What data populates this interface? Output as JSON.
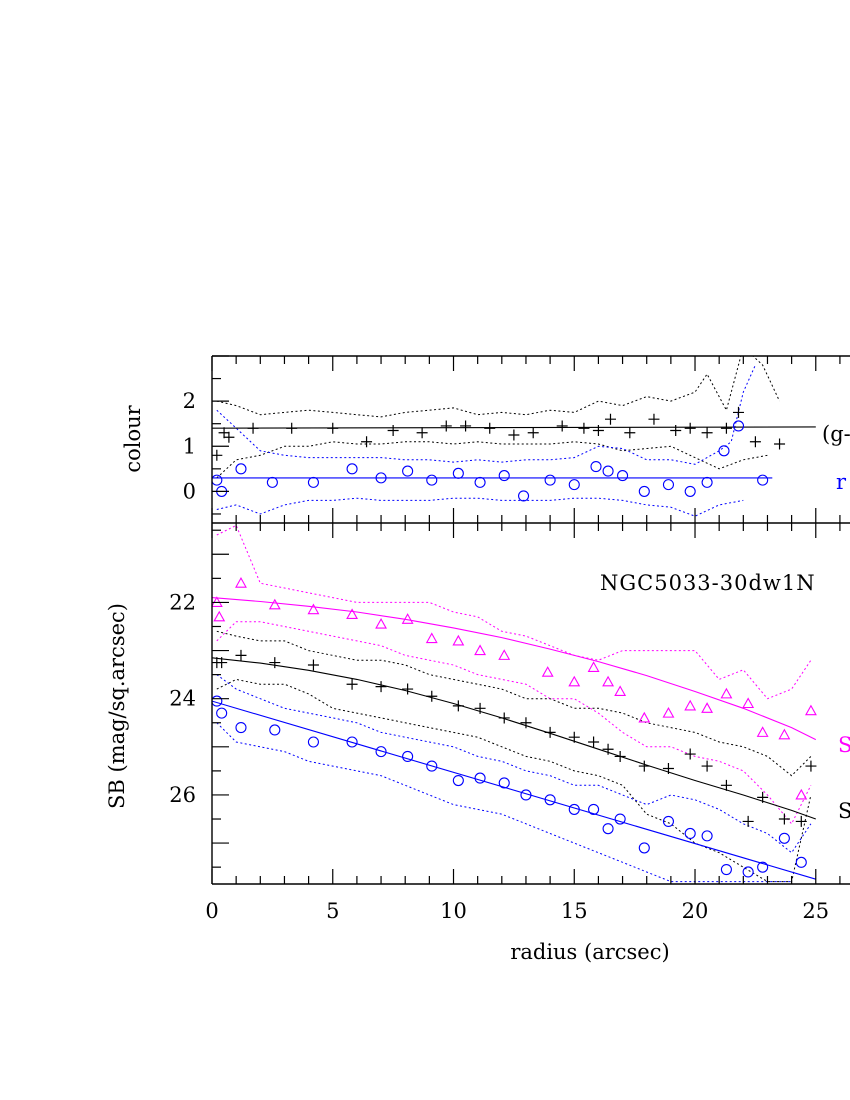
{
  "chart_data": [
    {
      "type": "scatter",
      "panel": "colour",
      "ylabel": "colour",
      "xlim": [
        0,
        26.5
      ],
      "ylim": [
        -0.7,
        3.0
      ],
      "y_inverted": false,
      "ytick_labels": [
        "0",
        "1",
        "2"
      ],
      "ytick_values": [
        0,
        1,
        2
      ],
      "annotations": [
        {
          "text": "(g-",
          "color": "#000000"
        },
        {
          "text": "r",
          "color": "#0000ff"
        }
      ],
      "series": [
        {
          "marker": "plus",
          "color": "#000000",
          "x": [
            0.2,
            0.5,
            0.7,
            1.7,
            3.3,
            5.0,
            6.4,
            7.5,
            8.7,
            9.7,
            10.5,
            11.5,
            12.5,
            13.3,
            14.5,
            15.4,
            16.0,
            16.5,
            17.3,
            18.3,
            19.2,
            19.8,
            20.5,
            21.3,
            21.8,
            22.5,
            23.5
          ],
          "y": [
            0.8,
            1.3,
            1.2,
            1.4,
            1.4,
            1.4,
            1.1,
            1.35,
            1.3,
            1.45,
            1.45,
            1.4,
            1.25,
            1.3,
            1.45,
            1.4,
            1.35,
            1.6,
            1.3,
            1.6,
            1.35,
            1.4,
            1.3,
            1.4,
            1.75,
            1.1,
            1.05
          ]
        },
        {
          "marker": "circle",
          "color": "#0000ff",
          "x": [
            0.2,
            0.4,
            1.2,
            2.5,
            4.2,
            5.8,
            7.0,
            8.1,
            9.1,
            10.2,
            11.1,
            12.1,
            12.9,
            14.0,
            15.0,
            15.9,
            16.4,
            17.0,
            17.9,
            18.9,
            19.8,
            20.5,
            21.2,
            21.8,
            22.8
          ],
          "y": [
            0.25,
            0.0,
            0.5,
            0.2,
            0.2,
            0.5,
            0.3,
            0.45,
            0.25,
            0.4,
            0.2,
            0.35,
            -0.1,
            0.25,
            0.15,
            0.55,
            0.45,
            0.35,
            0.0,
            0.15,
            0.0,
            0.2,
            0.9,
            1.45,
            0.25
          ]
        }
      ],
      "fit_lines": [
        {
          "color": "#000000",
          "x": [
            0,
            25
          ],
          "y": [
            1.4,
            1.43
          ]
        },
        {
          "color": "#0000ff",
          "x": [
            0,
            23.2
          ],
          "y": [
            0.3,
            0.3
          ]
        }
      ],
      "dotted_bands": [
        {
          "color": "#000000",
          "x": [
            0.2,
            1,
            2,
            3,
            4,
            5,
            6,
            7,
            8,
            9,
            10,
            11,
            12,
            13,
            14,
            15,
            16,
            17,
            18,
            19,
            20,
            20.5,
            21.3,
            22,
            22.8,
            23.5
          ],
          "y": [
            2.0,
            1.9,
            1.7,
            1.75,
            1.8,
            1.75,
            1.7,
            1.65,
            1.75,
            1.8,
            1.85,
            1.7,
            1.75,
            1.7,
            1.8,
            1.75,
            2.0,
            1.9,
            2.1,
            2.0,
            2.2,
            2.6,
            1.8,
            3.2,
            2.8,
            2.0
          ]
        },
        {
          "color": "#000000",
          "x": [
            0.2,
            1,
            2,
            3,
            4,
            5,
            6,
            7,
            8,
            9,
            10,
            11,
            12,
            13,
            14,
            15,
            16,
            17,
            18,
            19,
            20,
            21,
            22,
            23
          ],
          "y": [
            0.3,
            0.7,
            0.8,
            1.0,
            1.0,
            1.1,
            1.05,
            1.05,
            1.1,
            1.1,
            1.05,
            1.1,
            1.05,
            1.05,
            1.05,
            1.1,
            1.05,
            0.9,
            0.95,
            1.0,
            0.75,
            0.5,
            0.7,
            0.8
          ]
        },
        {
          "color": "#0000ff",
          "x": [
            0.2,
            1,
            2,
            3,
            4,
            5,
            6,
            7,
            8,
            9,
            10,
            11,
            12,
            13,
            14,
            15,
            16,
            17,
            18,
            19,
            20,
            21,
            21.5,
            22,
            22.5
          ],
          "y": [
            1.8,
            1.4,
            0.9,
            0.8,
            0.75,
            0.75,
            0.75,
            0.75,
            0.7,
            0.7,
            0.65,
            0.7,
            0.65,
            0.7,
            0.7,
            0.75,
            1.0,
            0.95,
            0.7,
            0.7,
            0.6,
            0.9,
            1.1,
            2.2,
            2.8
          ]
        },
        {
          "color": "#0000ff",
          "x": [
            0.2,
            1,
            2,
            3,
            4,
            5,
            6,
            7,
            8,
            9,
            10,
            11,
            12,
            13,
            14,
            15,
            16,
            17,
            18,
            19,
            20,
            21,
            22
          ],
          "y": [
            -0.4,
            -0.3,
            -0.5,
            -0.3,
            -0.2,
            -0.2,
            -0.15,
            -0.2,
            -0.2,
            -0.2,
            -0.15,
            -0.15,
            -0.2,
            -0.2,
            -0.2,
            -0.15,
            -0.15,
            -0.2,
            -0.3,
            -0.35,
            -0.55,
            -0.3,
            -0.2
          ]
        }
      ]
    },
    {
      "type": "scatter",
      "panel": "surface-brightness",
      "ylabel": "SB (mag/sq.arcsec)",
      "xlabel": "radius (arcsec)",
      "xlim": [
        0,
        26.5
      ],
      "ylim": [
        27.85,
        20.35
      ],
      "y_inverted": true,
      "xtick_labels": [
        "0",
        "5",
        "10",
        "15",
        "20",
        "25"
      ],
      "xtick_values": [
        0,
        5,
        10,
        15,
        20,
        25
      ],
      "ytick_labels": [
        "22",
        "24",
        "26"
      ],
      "ytick_values": [
        22,
        24,
        26
      ],
      "annotations": [
        {
          "text": "NGC5033-30dw1N",
          "color": "#000000"
        },
        {
          "text": "S",
          "color": "#ff00ff"
        },
        {
          "text": "S",
          "color": "#000000"
        }
      ],
      "series": [
        {
          "marker": "triangle",
          "color": "#ff00ff",
          "x": [
            0.2,
            0.3,
            1.2,
            2.6,
            4.2,
            5.8,
            7.0,
            8.1,
            9.1,
            10.2,
            11.1,
            12.1,
            13.9,
            15.0,
            15.8,
            16.4,
            16.9,
            17.9,
            18.9,
            19.8,
            20.5,
            21.3,
            22.2,
            22.8,
            23.7,
            24.4,
            24.8
          ],
          "y": [
            22.0,
            22.3,
            21.6,
            22.05,
            22.15,
            22.25,
            22.45,
            22.35,
            22.75,
            22.8,
            23.0,
            23.1,
            23.45,
            23.65,
            23.35,
            23.65,
            23.85,
            24.4,
            24.3,
            24.15,
            24.2,
            23.9,
            24.1,
            24.7,
            24.75,
            26.0,
            24.25
          ]
        },
        {
          "marker": "plus",
          "color": "#000000",
          "x": [
            0.2,
            0.4,
            1.2,
            2.6,
            4.2,
            5.8,
            7.0,
            8.1,
            9.1,
            10.2,
            11.1,
            12.1,
            13.0,
            14.0,
            15.0,
            15.8,
            16.4,
            16.9,
            17.9,
            18.9,
            19.8,
            20.5,
            21.3,
            22.2,
            22.8,
            23.7,
            24.4,
            24.8
          ],
          "y": [
            23.25,
            23.25,
            23.1,
            23.25,
            23.3,
            23.7,
            23.75,
            23.8,
            23.95,
            24.15,
            24.2,
            24.4,
            24.5,
            24.7,
            24.8,
            24.9,
            25.05,
            25.2,
            25.4,
            25.45,
            25.15,
            25.4,
            25.8,
            26.55,
            26.05,
            26.5,
            26.55,
            25.4
          ]
        },
        {
          "marker": "circle",
          "color": "#0000ff",
          "x": [
            0.2,
            0.4,
            1.2,
            2.6,
            4.2,
            5.8,
            7.0,
            8.1,
            9.1,
            10.2,
            11.1,
            12.1,
            13.0,
            14.0,
            15.0,
            15.8,
            16.4,
            16.9,
            17.9,
            18.9,
            19.8,
            20.5,
            21.3,
            22.2,
            22.8,
            23.7,
            24.4
          ],
          "y": [
            24.05,
            24.3,
            24.6,
            24.65,
            24.9,
            24.9,
            25.1,
            25.2,
            25.4,
            25.7,
            25.65,
            25.75,
            26.0,
            26.1,
            26.3,
            26.3,
            26.7,
            26.5,
            27.1,
            26.55,
            26.8,
            26.85,
            27.55,
            27.6,
            27.5,
            26.9,
            27.4
          ]
        }
      ],
      "fit_lines": [
        {
          "color": "#ff00ff",
          "x": [
            0,
            2,
            4,
            6,
            8,
            10,
            12,
            14,
            16,
            18,
            20,
            22,
            24,
            25
          ],
          "y": [
            21.9,
            21.98,
            22.08,
            22.2,
            22.35,
            22.53,
            22.73,
            22.97,
            23.23,
            23.52,
            23.85,
            24.2,
            24.6,
            24.85
          ]
        },
        {
          "color": "#000000",
          "x": [
            0,
            2,
            4,
            6,
            8,
            10,
            12,
            14,
            16,
            18,
            20,
            22,
            24,
            25
          ],
          "y": [
            23.15,
            23.26,
            23.41,
            23.6,
            23.83,
            24.1,
            24.4,
            24.72,
            25.05,
            25.38,
            25.7,
            26.0,
            26.32,
            26.5
          ]
        },
        {
          "color": "#0000ff",
          "x": [
            0,
            25
          ],
          "y": [
            24.05,
            27.75
          ]
        }
      ],
      "dotted_bands": [
        {
          "color": "#ff00ff",
          "x": [
            0.2,
            1,
            2,
            3,
            4,
            5,
            6,
            7,
            8,
            9,
            10,
            11,
            12,
            13,
            14,
            15,
            16,
            17,
            18,
            19,
            20,
            21,
            22,
            23,
            24,
            24.8
          ],
          "y": [
            20.6,
            20.4,
            21.6,
            21.7,
            21.8,
            21.9,
            22.0,
            22.0,
            22.0,
            22.0,
            22.2,
            22.3,
            22.6,
            22.7,
            22.9,
            23.1,
            23.2,
            23.0,
            23.0,
            23.0,
            23.0,
            23.6,
            23.4,
            24.0,
            23.8,
            23.2
          ]
        },
        {
          "color": "#ff00ff",
          "x": [
            0.2,
            1,
            2,
            3,
            4,
            5,
            6,
            7,
            8,
            9,
            10,
            11,
            12,
            13,
            14,
            15,
            16,
            17,
            18,
            19,
            20,
            21,
            22,
            23,
            24,
            24.8
          ],
          "y": [
            22.8,
            22.4,
            22.4,
            22.5,
            22.6,
            22.7,
            22.8,
            22.9,
            23.1,
            23.2,
            23.3,
            23.5,
            23.6,
            23.7,
            24.0,
            24.0,
            24.3,
            24.7,
            25.0,
            25.0,
            25.2,
            25.3,
            25.5,
            26.0,
            26.6,
            25.8
          ]
        },
        {
          "color": "#000000",
          "x": [
            0.2,
            1,
            2,
            3,
            4,
            5,
            6,
            7,
            8,
            9,
            10,
            11,
            12,
            13,
            14,
            15,
            16,
            17,
            18,
            19,
            20,
            21,
            22,
            23,
            24,
            24.8
          ],
          "y": [
            22.6,
            22.7,
            22.8,
            22.8,
            23.0,
            23.1,
            23.2,
            23.2,
            23.3,
            23.5,
            23.6,
            23.7,
            23.8,
            24.0,
            24.0,
            24.2,
            24.2,
            24.3,
            24.5,
            24.6,
            24.7,
            24.9,
            25.0,
            25.2,
            25.6,
            25.2
          ]
        },
        {
          "color": "#000000",
          "x": [
            0.2,
            1,
            2,
            3,
            4,
            5,
            6,
            7,
            8,
            9,
            10,
            11,
            12,
            13,
            14,
            15,
            16,
            17,
            18,
            19,
            20,
            21,
            22,
            23,
            24,
            24.8
          ],
          "y": [
            23.8,
            23.6,
            23.7,
            23.7,
            23.9,
            24.2,
            24.3,
            24.4,
            24.5,
            24.6,
            24.7,
            24.8,
            25.0,
            25.2,
            25.3,
            25.5,
            25.6,
            25.8,
            26.4,
            26.6,
            27.0,
            27.2,
            27.5,
            27.8,
            27.8,
            26.0
          ]
        },
        {
          "color": "#0000ff",
          "x": [
            0.2,
            1,
            2,
            3,
            4,
            5,
            6,
            7,
            8,
            9,
            10,
            11,
            12,
            13,
            14,
            15,
            16,
            17,
            18,
            19,
            20,
            21,
            22,
            23,
            24,
            24.8
          ],
          "y": [
            23.5,
            23.8,
            24.0,
            24.2,
            24.3,
            24.4,
            24.5,
            24.7,
            24.8,
            24.9,
            25.0,
            25.2,
            25.3,
            25.5,
            25.6,
            25.8,
            25.8,
            26.0,
            26.2,
            26.0,
            26.1,
            26.3,
            26.6,
            26.8,
            27.2,
            26.6
          ]
        },
        {
          "color": "#0000ff",
          "x": [
            0.2,
            1,
            2,
            3,
            4,
            5,
            6,
            7,
            8,
            9,
            10,
            11,
            12,
            13,
            14,
            15,
            16,
            17,
            18,
            19,
            20,
            21,
            22,
            23,
            24
          ],
          "y": [
            24.5,
            24.9,
            25.0,
            25.1,
            25.3,
            25.4,
            25.5,
            25.6,
            25.8,
            26.0,
            26.2,
            26.3,
            26.4,
            26.6,
            26.8,
            27.0,
            27.2,
            27.4,
            27.6,
            27.8,
            27.8,
            27.8,
            27.8,
            27.8,
            27.8
          ]
        }
      ]
    }
  ]
}
